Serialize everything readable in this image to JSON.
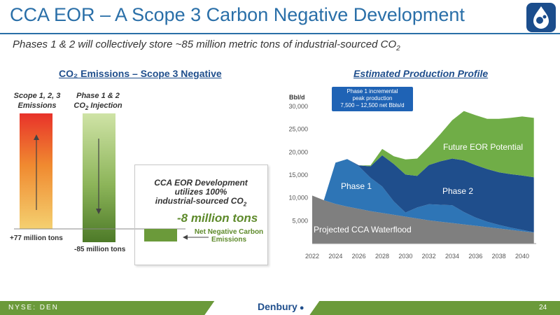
{
  "slide": {
    "title": "CCA EOR – A Scope 3 Carbon Negative Development",
    "subtitle": "Phases 1 & 2 will collectively store ~85 million metric tons of industrial-sourced CO",
    "subtitle_sub": "2",
    "page_number": "24",
    "ticker": "NYSE: DEN",
    "brand": "Denbury"
  },
  "colors": {
    "accent": "#2a6fa8",
    "green": "#6b9a3a",
    "navy": "#1f4e8c"
  },
  "emissions": {
    "heading": "CO₂ Emissions – Scope 3 Negative",
    "col1_line1": "Scope 1, 2, 3",
    "col1_line2": "Emissions",
    "col2_line1": "Phase 1 & 2",
    "col2_line2_pre": "CO",
    "col2_line2_sub": "2",
    "col2_line2_post": " Injection",
    "bar1_label": "+77 million tons",
    "bar2_label": "-85 million tons",
    "callout_line1": "CCA EOR Development",
    "callout_line2": "utilizes 100%",
    "callout_line3_pre": "industrial-sourced CO",
    "callout_line3_sub": "2",
    "net_value": "-8 million tons",
    "net_label_line1": "Net Negative Carbon",
    "net_label_line2": "Emissions"
  },
  "production": {
    "heading": "Estimated Production Profile",
    "callout_line1": "Phase 1 incremental",
    "callout_line2": "peak production",
    "callout_line3": "7,500 – 12,500 net Bbls/d"
  },
  "chart_data": {
    "type": "area",
    "stacked": true,
    "ylabel": "Bbl/d",
    "ylim": [
      0,
      32000
    ],
    "yticks": [
      5000,
      10000,
      15000,
      20000,
      25000,
      30000
    ],
    "ytick_labels": [
      "5,000",
      "10,000",
      "15,000",
      "20,000",
      "25,000",
      "30,000"
    ],
    "xlim": [
      2022,
      2041.2
    ],
    "xticks": [
      2022,
      2024,
      2026,
      2028,
      2030,
      2032,
      2034,
      2036,
      2038,
      2040
    ],
    "xtick_labels": [
      "2022",
      "2024",
      "2026",
      "2028",
      "2030",
      "2032",
      "2034",
      "2036",
      "2038",
      "2040"
    ],
    "x": [
      2022,
      2023,
      2024,
      2025,
      2026,
      2027,
      2028,
      2029,
      2030,
      2031,
      2032,
      2033,
      2034,
      2035,
      2036,
      2037,
      2038,
      2039,
      2040,
      2041
    ],
    "series": [
      {
        "name": "Projected CCA Waterflood",
        "color": "#7f7f7f",
        "values": [
          10500,
          9500,
          8700,
          8100,
          7600,
          7100,
          6700,
          6300,
          5900,
          5500,
          5100,
          4800,
          4500,
          4200,
          3900,
          3600,
          3300,
          3000,
          2700,
          2400
        ]
      },
      {
        "name": "Phase 1",
        "color": "#2e75b6",
        "values": [
          0,
          0,
          9000,
          10400,
          9300,
          7300,
          5800,
          2900,
          900,
          2400,
          3500,
          3700,
          3900,
          2700,
          1800,
          1200,
          800,
          500,
          300,
          100
        ]
      },
      {
        "name": "Phase 2",
        "color": "#1f4e8c",
        "values": [
          0,
          0,
          0,
          0,
          200,
          2500,
          6800,
          8200,
          8300,
          6900,
          8600,
          9500,
          10200,
          11300,
          11500,
          11500,
          11500,
          11700,
          11900,
          12000
        ]
      },
      {
        "name": "Future EOR Potential",
        "color": "#70ad47",
        "values": [
          0,
          0,
          0,
          0,
          0,
          200,
          1400,
          1700,
          3300,
          3800,
          4000,
          6000,
          8400,
          10800,
          10900,
          11000,
          11700,
          12300,
          12900,
          13000
        ]
      }
    ]
  }
}
